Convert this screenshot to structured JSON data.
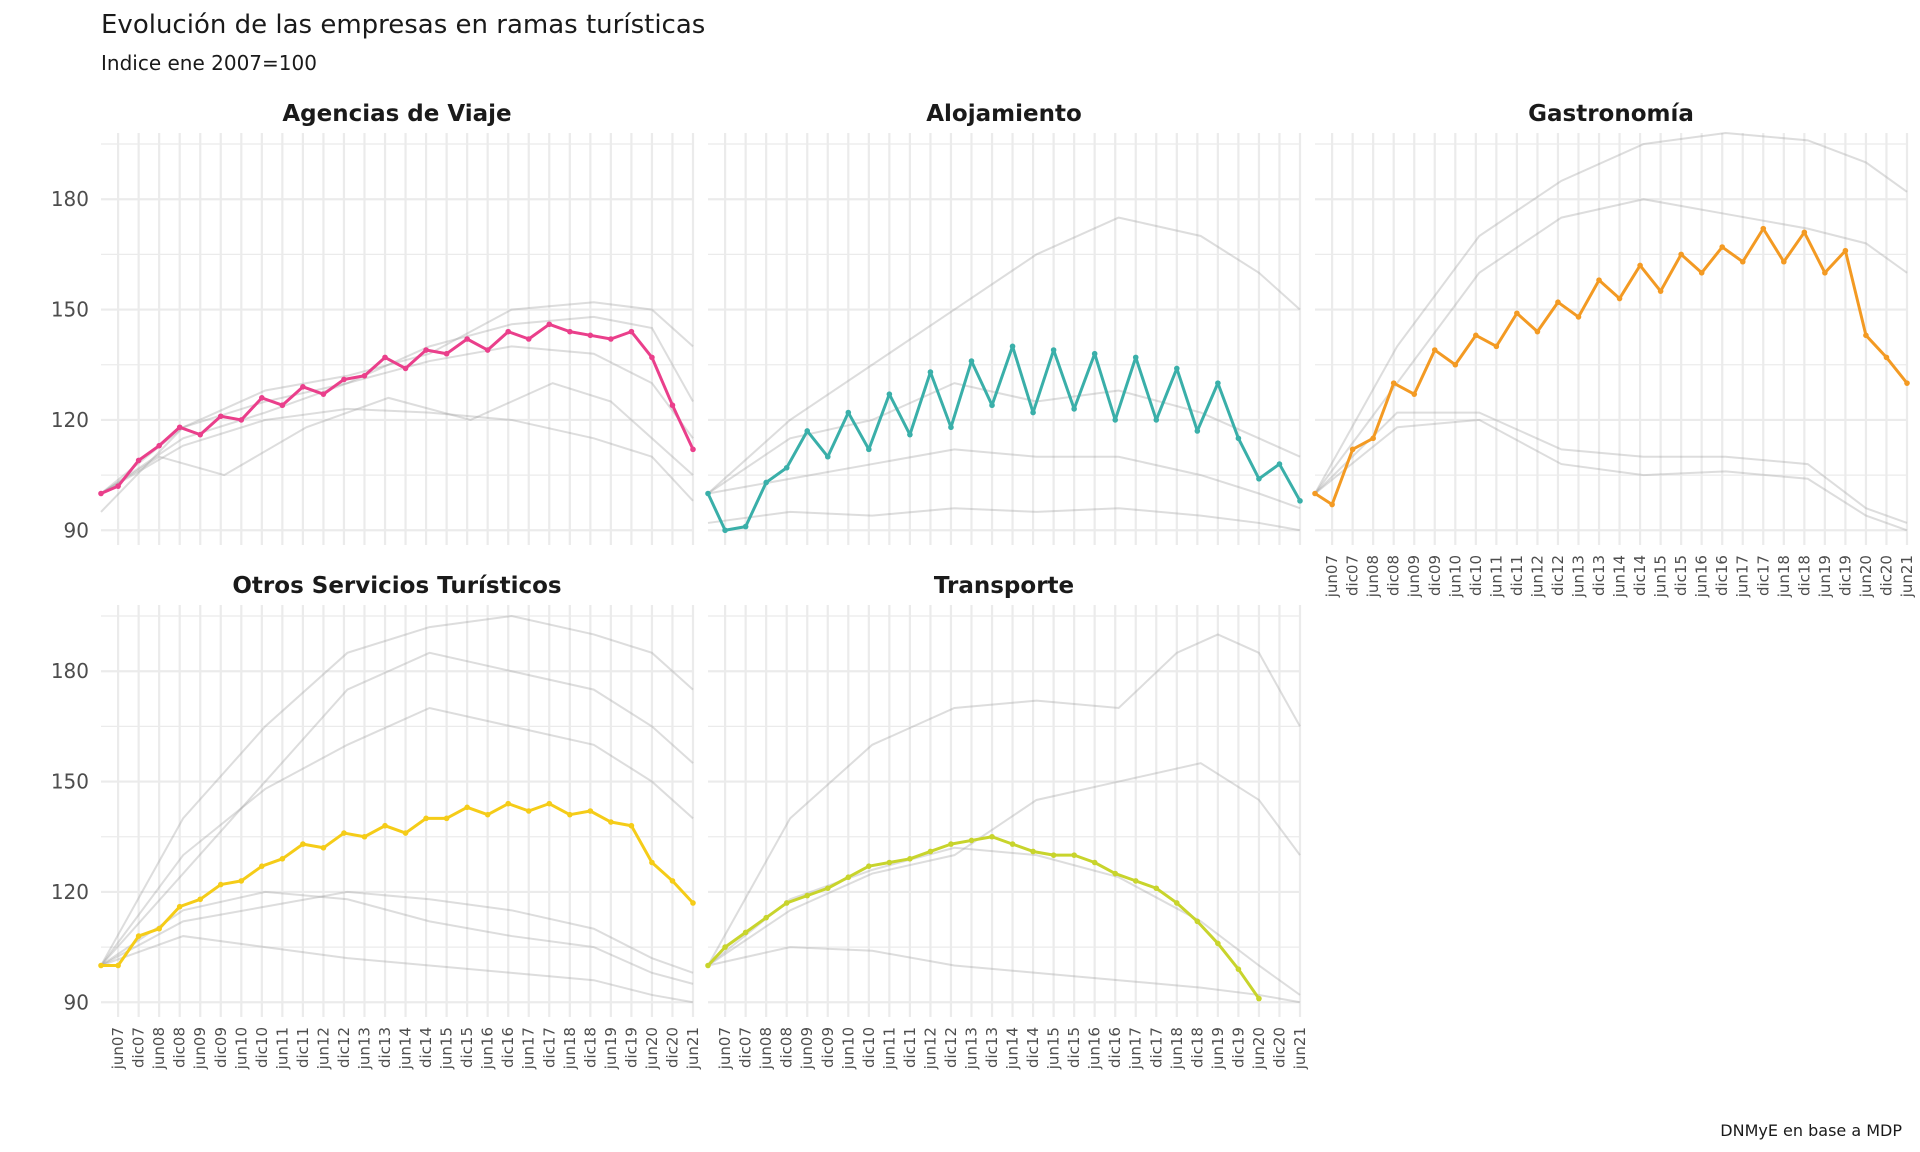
{
  "title": "Evolución de las empresas en ramas turísticas",
  "subtitle": "Indice ene 2007=100",
  "caption": "DNMyE en base a MDP",
  "chart_data": {
    "type": "line",
    "facet_layout": "3 columns x 2 rows, shared y axis, free x labels on bottom panels",
    "grid": true,
    "legend": "none",
    "ylim": [
      86,
      198
    ],
    "yticks": [
      90,
      120,
      150,
      180
    ],
    "x_start": "2007-01",
    "x_end": "2021-06",
    "xticks": [
      "jun07",
      "dic07",
      "jun08",
      "dic08",
      "jun09",
      "dic09",
      "jun10",
      "dic10",
      "jun11",
      "dic11",
      "jun12",
      "dic12",
      "jun13",
      "dic13",
      "jun14",
      "dic14",
      "jun15",
      "dic15",
      "jun16",
      "dic16",
      "jun17",
      "dic17",
      "jun18",
      "dic18",
      "jun19",
      "dic19",
      "jun20",
      "dic20",
      "jun21"
    ],
    "background_series_color": "#9e9e9e",
    "panels": [
      {
        "name": "Agencias de Viaje",
        "color": "#ea3f8b",
        "highlight": {
          "x": [
            "2007-01",
            "2007-06",
            "2007-12",
            "2008-06",
            "2008-12",
            "2009-06",
            "2009-12",
            "2010-06",
            "2010-12",
            "2011-06",
            "2011-12",
            "2012-06",
            "2012-12",
            "2013-06",
            "2013-12",
            "2014-06",
            "2014-12",
            "2015-06",
            "2015-12",
            "2016-06",
            "2016-12",
            "2017-06",
            "2017-12",
            "2018-06",
            "2018-12",
            "2019-06",
            "2019-12",
            "2020-06",
            "2020-12",
            "2021-06"
          ],
          "y": [
            100,
            102,
            109,
            113,
            118,
            116,
            121,
            120,
            126,
            124,
            129,
            127,
            131,
            132,
            137,
            134,
            139,
            138,
            142,
            139,
            144,
            142,
            146,
            144,
            143,
            142,
            144,
            137,
            124,
            112
          ]
        },
        "background": [
          {
            "x": [
              "2007-01",
              "2009-01",
              "2011-01",
              "2013-01",
              "2015-01",
              "2017-01",
              "2019-01",
              "2020-06",
              "2021-06"
            ],
            "y": [
              100,
              115,
              122,
              130,
              140,
              146,
              148,
              145,
              125
            ]
          },
          {
            "x": [
              "2007-01",
              "2009-01",
              "2011-01",
              "2013-01",
              "2015-01",
              "2017-01",
              "2019-01",
              "2020-06",
              "2021-06"
            ],
            "y": [
              100,
              118,
              125,
              130,
              136,
              140,
              138,
              130,
              115
            ]
          },
          {
            "x": [
              "2007-01",
              "2009-01",
              "2011-01",
              "2013-01",
              "2015-01",
              "2017-01",
              "2019-01",
              "2020-06",
              "2021-06"
            ],
            "y": [
              100,
              113,
              120,
              123,
              122,
              120,
              115,
              110,
              98
            ]
          },
          {
            "x": [
              "2007-01",
              "2009-01",
              "2011-01",
              "2013-01",
              "2015-01",
              "2017-01",
              "2019-01",
              "2020-06",
              "2021-06"
            ],
            "y": [
              95,
              118,
              128,
              132,
              138,
              150,
              152,
              150,
              140
            ]
          },
          {
            "x": [
              "2007-01",
              "2008-06",
              "2010-01",
              "2012-01",
              "2014-01",
              "2016-01",
              "2018-01",
              "2019-06",
              "2021-06"
            ],
            "y": [
              100,
              110,
              105,
              118,
              126,
              120,
              130,
              125,
              105
            ]
          }
        ]
      },
      {
        "name": "Alojamiento",
        "color": "#3aafa9",
        "highlight": {
          "x": [
            "2007-01",
            "2007-06",
            "2007-12",
            "2008-06",
            "2008-12",
            "2009-06",
            "2009-12",
            "2010-06",
            "2010-12",
            "2011-06",
            "2011-12",
            "2012-06",
            "2012-12",
            "2013-06",
            "2013-12",
            "2014-06",
            "2014-12",
            "2015-06",
            "2015-12",
            "2016-06",
            "2016-12",
            "2017-06",
            "2017-12",
            "2018-06",
            "2018-12",
            "2019-06",
            "2019-12",
            "2020-06",
            "2020-12",
            "2021-06"
          ],
          "y": [
            100,
            90,
            91,
            103,
            107,
            117,
            110,
            122,
            112,
            127,
            116,
            133,
            118,
            136,
            124,
            140,
            122,
            139,
            123,
            138,
            120,
            137,
            120,
            134,
            117,
            130,
            115,
            104,
            108,
            98
          ]
        },
        "background": [
          {
            "x": [
              "2007-01",
              "2009-01",
              "2011-01",
              "2013-01",
              "2015-01",
              "2017-01",
              "2019-01",
              "2020-06",
              "2021-06"
            ],
            "y": [
              100,
              120,
              135,
              150,
              165,
              175,
              170,
              160,
              150
            ]
          },
          {
            "x": [
              "2007-01",
              "2009-01",
              "2011-01",
              "2013-01",
              "2015-01",
              "2017-01",
              "2019-01",
              "2020-06",
              "2021-06"
            ],
            "y": [
              100,
              104,
              108,
              112,
              110,
              110,
              105,
              100,
              96
            ]
          },
          {
            "x": [
              "2007-01",
              "2009-01",
              "2011-01",
              "2013-01",
              "2015-01",
              "2017-01",
              "2019-01",
              "2020-06",
              "2021-06"
            ],
            "y": [
              92,
              95,
              94,
              96,
              95,
              96,
              94,
              92,
              90
            ]
          },
          {
            "x": [
              "2007-01",
              "2009-01",
              "2011-01",
              "2013-01",
              "2015-01",
              "2017-01",
              "2019-01",
              "2020-06",
              "2021-06"
            ],
            "y": [
              100,
              115,
              120,
              130,
              125,
              128,
              122,
              115,
              110
            ]
          }
        ]
      },
      {
        "name": "Gastronomía",
        "color": "#f39a23",
        "highlight": {
          "x": [
            "2007-01",
            "2007-06",
            "2007-12",
            "2008-06",
            "2008-12",
            "2009-06",
            "2009-12",
            "2010-06",
            "2010-12",
            "2011-06",
            "2011-12",
            "2012-06",
            "2012-12",
            "2013-06",
            "2013-12",
            "2014-06",
            "2014-12",
            "2015-06",
            "2015-12",
            "2016-06",
            "2016-12",
            "2017-06",
            "2017-12",
            "2018-06",
            "2018-12",
            "2019-06",
            "2019-12",
            "2020-06",
            "2020-12",
            "2021-06"
          ],
          "y": [
            100,
            97,
            112,
            115,
            130,
            127,
            139,
            135,
            143,
            140,
            149,
            144,
            152,
            148,
            158,
            153,
            162,
            155,
            165,
            160,
            167,
            163,
            172,
            163,
            171,
            160,
            166,
            143,
            137,
            130
          ]
        },
        "background": [
          {
            "x": [
              "2007-01",
              "2009-01",
              "2011-01",
              "2013-01",
              "2015-01",
              "2017-01",
              "2019-01",
              "2020-06",
              "2021-06"
            ],
            "y": [
              100,
              140,
              170,
              185,
              195,
              198,
              196,
              190,
              182
            ]
          },
          {
            "x": [
              "2007-01",
              "2009-01",
              "2011-01",
              "2013-01",
              "2015-01",
              "2017-01",
              "2019-01",
              "2020-06",
              "2021-06"
            ],
            "y": [
              100,
              122,
              122,
              112,
              110,
              110,
              108,
              96,
              92
            ]
          },
          {
            "x": [
              "2007-01",
              "2009-01",
              "2011-01",
              "2013-01",
              "2015-01",
              "2017-01",
              "2019-01",
              "2020-06",
              "2021-06"
            ],
            "y": [
              100,
              118,
              120,
              108,
              105,
              106,
              104,
              94,
              90
            ]
          },
          {
            "x": [
              "2007-01",
              "2009-01",
              "2011-01",
              "2013-01",
              "2015-01",
              "2017-01",
              "2019-01",
              "2020-06",
              "2021-06"
            ],
            "y": [
              100,
              130,
              160,
              175,
              180,
              176,
              172,
              168,
              160
            ]
          }
        ]
      },
      {
        "name": "Otros Servicios Turísticos",
        "color": "#f5cc18",
        "highlight": {
          "x": [
            "2007-01",
            "2007-06",
            "2007-12",
            "2008-06",
            "2008-12",
            "2009-06",
            "2009-12",
            "2010-06",
            "2010-12",
            "2011-06",
            "2011-12",
            "2012-06",
            "2012-12",
            "2013-06",
            "2013-12",
            "2014-06",
            "2014-12",
            "2015-06",
            "2015-12",
            "2016-06",
            "2016-12",
            "2017-06",
            "2017-12",
            "2018-06",
            "2018-12",
            "2019-06",
            "2019-12",
            "2020-06",
            "2020-12",
            "2021-06"
          ],
          "y": [
            100,
            100,
            108,
            110,
            116,
            118,
            122,
            123,
            127,
            129,
            133,
            132,
            136,
            135,
            138,
            136,
            140,
            140,
            143,
            141,
            144,
            142,
            144,
            141,
            142,
            139,
            138,
            128,
            123,
            117
          ]
        },
        "background": [
          {
            "x": [
              "2007-01",
              "2009-01",
              "2011-01",
              "2013-01",
              "2015-01",
              "2017-01",
              "2019-01",
              "2020-06",
              "2021-06"
            ],
            "y": [
              100,
              140,
              165,
              185,
              192,
              195,
              190,
              185,
              175
            ]
          },
          {
            "x": [
              "2007-01",
              "2009-01",
              "2011-01",
              "2013-01",
              "2015-01",
              "2017-01",
              "2019-01",
              "2020-06",
              "2021-06"
            ],
            "y": [
              100,
              125,
              150,
              175,
              185,
              180,
              175,
              165,
              155
            ]
          },
          {
            "x": [
              "2007-01",
              "2009-01",
              "2011-01",
              "2013-01",
              "2015-01",
              "2017-01",
              "2019-01",
              "2020-06",
              "2021-06"
            ],
            "y": [
              100,
              115,
              120,
              118,
              112,
              108,
              105,
              98,
              95
            ]
          },
          {
            "x": [
              "2007-01",
              "2009-01",
              "2011-01",
              "2013-01",
              "2015-01",
              "2017-01",
              "2019-01",
              "2020-06",
              "2021-06"
            ],
            "y": [
              100,
              108,
              105,
              102,
              100,
              98,
              96,
              92,
              90
            ]
          },
          {
            "x": [
              "2007-01",
              "2009-01",
              "2011-01",
              "2013-01",
              "2015-01",
              "2017-01",
              "2019-01",
              "2020-06",
              "2021-06"
            ],
            "y": [
              100,
              112,
              116,
              120,
              118,
              115,
              110,
              102,
              98
            ]
          },
          {
            "x": [
              "2007-01",
              "2009-01",
              "2011-01",
              "2013-01",
              "2015-01",
              "2017-01",
              "2019-01",
              "2020-06",
              "2021-06"
            ],
            "y": [
              100,
              130,
              148,
              160,
              170,
              165,
              160,
              150,
              140
            ]
          }
        ]
      },
      {
        "name": "Transporte",
        "color": "#c8d42c",
        "highlight": {
          "x": [
            "2007-01",
            "2007-06",
            "2007-12",
            "2008-06",
            "2008-12",
            "2009-06",
            "2009-12",
            "2010-06",
            "2010-12",
            "2011-06",
            "2011-12",
            "2012-06",
            "2012-12",
            "2013-06",
            "2013-12",
            "2014-06",
            "2014-12",
            "2015-06",
            "2015-12",
            "2016-06",
            "2016-12",
            "2017-06",
            "2017-12",
            "2018-06",
            "2018-12",
            "2019-06",
            "2019-12",
            "2020-06",
            "2020-12",
            "2021-06"
          ],
          "y": [
            100,
            105,
            109,
            113,
            117,
            119,
            121,
            124,
            127,
            128,
            129,
            131,
            133,
            134,
            135,
            133,
            131,
            130,
            130,
            128,
            125,
            123,
            121,
            117,
            112,
            106,
            99,
            91,
            null,
            null
          ]
        },
        "background": [
          {
            "x": [
              "2007-01",
              "2009-01",
              "2011-01",
              "2013-01",
              "2015-01",
              "2017-01",
              "2018-06",
              "2019-06",
              "2020-06",
              "2021-06"
            ],
            "y": [
              100,
              140,
              160,
              170,
              172,
              170,
              185,
              190,
              185,
              165
            ]
          },
          {
            "x": [
              "2007-01",
              "2009-01",
              "2011-01",
              "2013-01",
              "2015-01",
              "2017-01",
              "2019-01",
              "2020-06",
              "2021-06"
            ],
            "y": [
              100,
              105,
              104,
              100,
              98,
              96,
              94,
              92,
              90
            ]
          },
          {
            "x": [
              "2007-01",
              "2009-01",
              "2011-01",
              "2013-01",
              "2015-01",
              "2017-01",
              "2019-01",
              "2020-06",
              "2021-06"
            ],
            "y": [
              100,
              115,
              125,
              130,
              145,
              150,
              155,
              145,
              130
            ]
          },
          {
            "x": [
              "2007-01",
              "2009-01",
              "2011-01",
              "2013-01",
              "2015-01",
              "2017-01",
              "2019-01",
              "2020-06",
              "2021-06"
            ],
            "y": [
              100,
              118,
              126,
              132,
              130,
              124,
              112,
              100,
              92
            ]
          }
        ]
      }
    ]
  }
}
